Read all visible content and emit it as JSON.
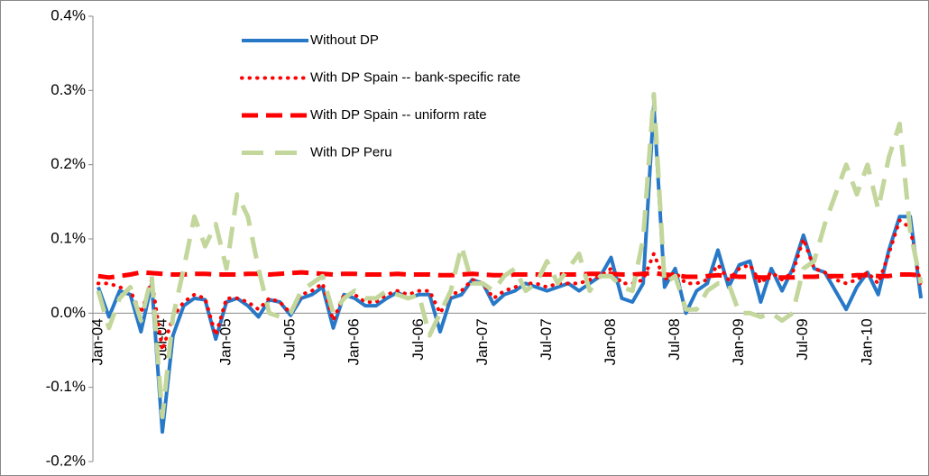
{
  "chart_data": {
    "type": "line",
    "categories": [
      "Jan-04",
      null,
      null,
      null,
      null,
      null,
      "Jul-04",
      null,
      null,
      null,
      null,
      null,
      "Jan-05",
      null,
      null,
      null,
      null,
      null,
      "Jul-05",
      null,
      null,
      null,
      null,
      null,
      "Jan-06",
      null,
      null,
      null,
      null,
      null,
      "Jul-06",
      null,
      null,
      null,
      null,
      null,
      "Jan-07",
      null,
      null,
      null,
      null,
      null,
      "Jul-07",
      null,
      null,
      null,
      null,
      null,
      "Jan-08",
      null,
      null,
      null,
      null,
      null,
      "Jul-08",
      null,
      null,
      null,
      null,
      null,
      "Jan-09",
      null,
      null,
      null,
      null,
      null,
      "Jul-09",
      null,
      null,
      null,
      null,
      null,
      "Jan-10",
      null,
      null,
      null,
      null,
      null
    ],
    "series": [
      {
        "name": "Without DP",
        "color": "#2878c8",
        "dash": "solid",
        "values": [
          0.035,
          -0.005,
          0.03,
          0.025,
          -0.025,
          0.04,
          -0.16,
          -0.03,
          0.01,
          0.02,
          0.018,
          -0.035,
          0.015,
          0.02,
          0.01,
          -0.005,
          0.018,
          0.015,
          -0.003,
          0.02,
          0.025,
          0.035,
          -0.02,
          0.025,
          0.02,
          0.01,
          0.01,
          0.02,
          0.028,
          0.02,
          0.025,
          0.025,
          -0.025,
          0.02,
          0.025,
          0.045,
          0.04,
          0.012,
          0.025,
          0.03,
          0.04,
          0.035,
          0.03,
          0.035,
          0.04,
          0.03,
          0.04,
          0.05,
          0.075,
          0.02,
          0.015,
          0.04,
          0.28,
          0.035,
          0.06,
          0.0,
          0.03,
          0.04,
          0.085,
          0.035,
          0.065,
          0.07,
          0.015,
          0.06,
          0.03,
          0.06,
          0.105,
          0.06,
          0.055,
          0.03,
          0.005,
          0.035,
          0.055,
          0.025,
          0.085,
          0.13,
          0.13,
          0.02
        ]
      },
      {
        "name": "With DP Spain -- bank-specific rate",
        "color": "#ff0000",
        "dash": "dot",
        "values": [
          0.04,
          0.04,
          0.035,
          0.03,
          0.0,
          0.045,
          -0.05,
          -0.005,
          0.015,
          0.025,
          0.02,
          -0.03,
          0.02,
          0.02,
          0.015,
          0.005,
          0.02,
          0.015,
          0.0,
          0.025,
          0.03,
          0.04,
          -0.01,
          0.025,
          0.025,
          0.015,
          0.015,
          0.025,
          0.03,
          0.025,
          0.03,
          0.03,
          0.0,
          0.025,
          0.03,
          0.045,
          0.04,
          0.02,
          0.03,
          0.035,
          0.04,
          0.04,
          0.035,
          0.04,
          0.04,
          0.04,
          0.045,
          0.05,
          0.06,
          0.04,
          0.04,
          0.045,
          0.08,
          0.045,
          0.055,
          0.04,
          0.04,
          0.045,
          0.065,
          0.045,
          0.06,
          0.065,
          0.04,
          0.055,
          0.045,
          0.055,
          0.1,
          0.06,
          0.055,
          0.045,
          0.04,
          0.045,
          0.055,
          0.04,
          0.08,
          0.125,
          0.115,
          0.035
        ]
      },
      {
        "name": "With DP Spain -- uniform rate",
        "color": "#ff0000",
        "dash": "dash",
        "values": [
          0.05,
          0.048,
          0.05,
          0.052,
          0.055,
          0.054,
          0.053,
          0.052,
          0.052,
          0.053,
          0.053,
          0.052,
          0.052,
          0.052,
          0.053,
          0.053,
          0.052,
          0.053,
          0.054,
          0.055,
          0.054,
          0.053,
          0.052,
          0.053,
          0.053,
          0.052,
          0.052,
          0.052,
          0.053,
          0.052,
          0.052,
          0.052,
          0.051,
          0.051,
          0.052,
          0.053,
          0.052,
          0.051,
          0.051,
          0.052,
          0.052,
          0.052,
          0.052,
          0.052,
          0.052,
          0.052,
          0.053,
          0.053,
          0.053,
          0.052,
          0.052,
          0.053,
          0.054,
          0.052,
          0.051,
          0.049,
          0.049,
          0.05,
          0.051,
          0.05,
          0.049,
          0.049,
          0.048,
          0.048,
          0.048,
          0.048,
          0.049,
          0.049,
          0.05,
          0.05,
          0.05,
          0.051,
          0.051,
          0.05,
          0.05,
          0.052,
          0.052,
          0.051
        ]
      },
      {
        "name": "With DP Peru",
        "color": "#c3d69b",
        "dash": "longdash",
        "values": [
          0.03,
          -0.02,
          0.02,
          0.035,
          -0.01,
          0.05,
          -0.14,
          -0.005,
          0.06,
          0.13,
          0.09,
          0.12,
          0.06,
          0.16,
          0.13,
          0.06,
          0.0,
          -0.005,
          0.0,
          0.03,
          0.04,
          0.05,
          0.0,
          0.02,
          0.03,
          0.02,
          0.02,
          0.03,
          0.025,
          0.02,
          0.025,
          -0.03,
          0.0,
          0.03,
          0.09,
          0.04,
          0.04,
          0.03,
          0.05,
          0.06,
          0.03,
          0.04,
          0.07,
          0.04,
          0.06,
          0.08,
          0.03,
          0.05,
          0.05,
          0.035,
          0.03,
          0.1,
          0.295,
          0.04,
          0.05,
          0.005,
          0.005,
          0.03,
          0.04,
          0.04,
          0.0,
          0.0,
          -0.005,
          0.0,
          -0.01,
          0.0,
          0.06,
          0.07,
          0.12,
          0.16,
          0.2,
          0.16,
          0.2,
          0.14,
          0.21,
          0.255,
          0.11,
          0.04
        ]
      }
    ],
    "ylim": [
      -0.2,
      0.4
    ],
    "yticks": [
      {
        "value": -0.2,
        "label": "-0.2%"
      },
      {
        "value": -0.1,
        "label": "-0.1%"
      },
      {
        "value": 0,
        "label": "0.0%"
      },
      {
        "value": 0.1,
        "label": "0.1%"
      },
      {
        "value": 0.2,
        "label": "0.2%"
      },
      {
        "value": 0.3,
        "label": "0.3%"
      },
      {
        "value": 0.4,
        "label": "0.4%"
      }
    ],
    "legend": "upper-left"
  }
}
